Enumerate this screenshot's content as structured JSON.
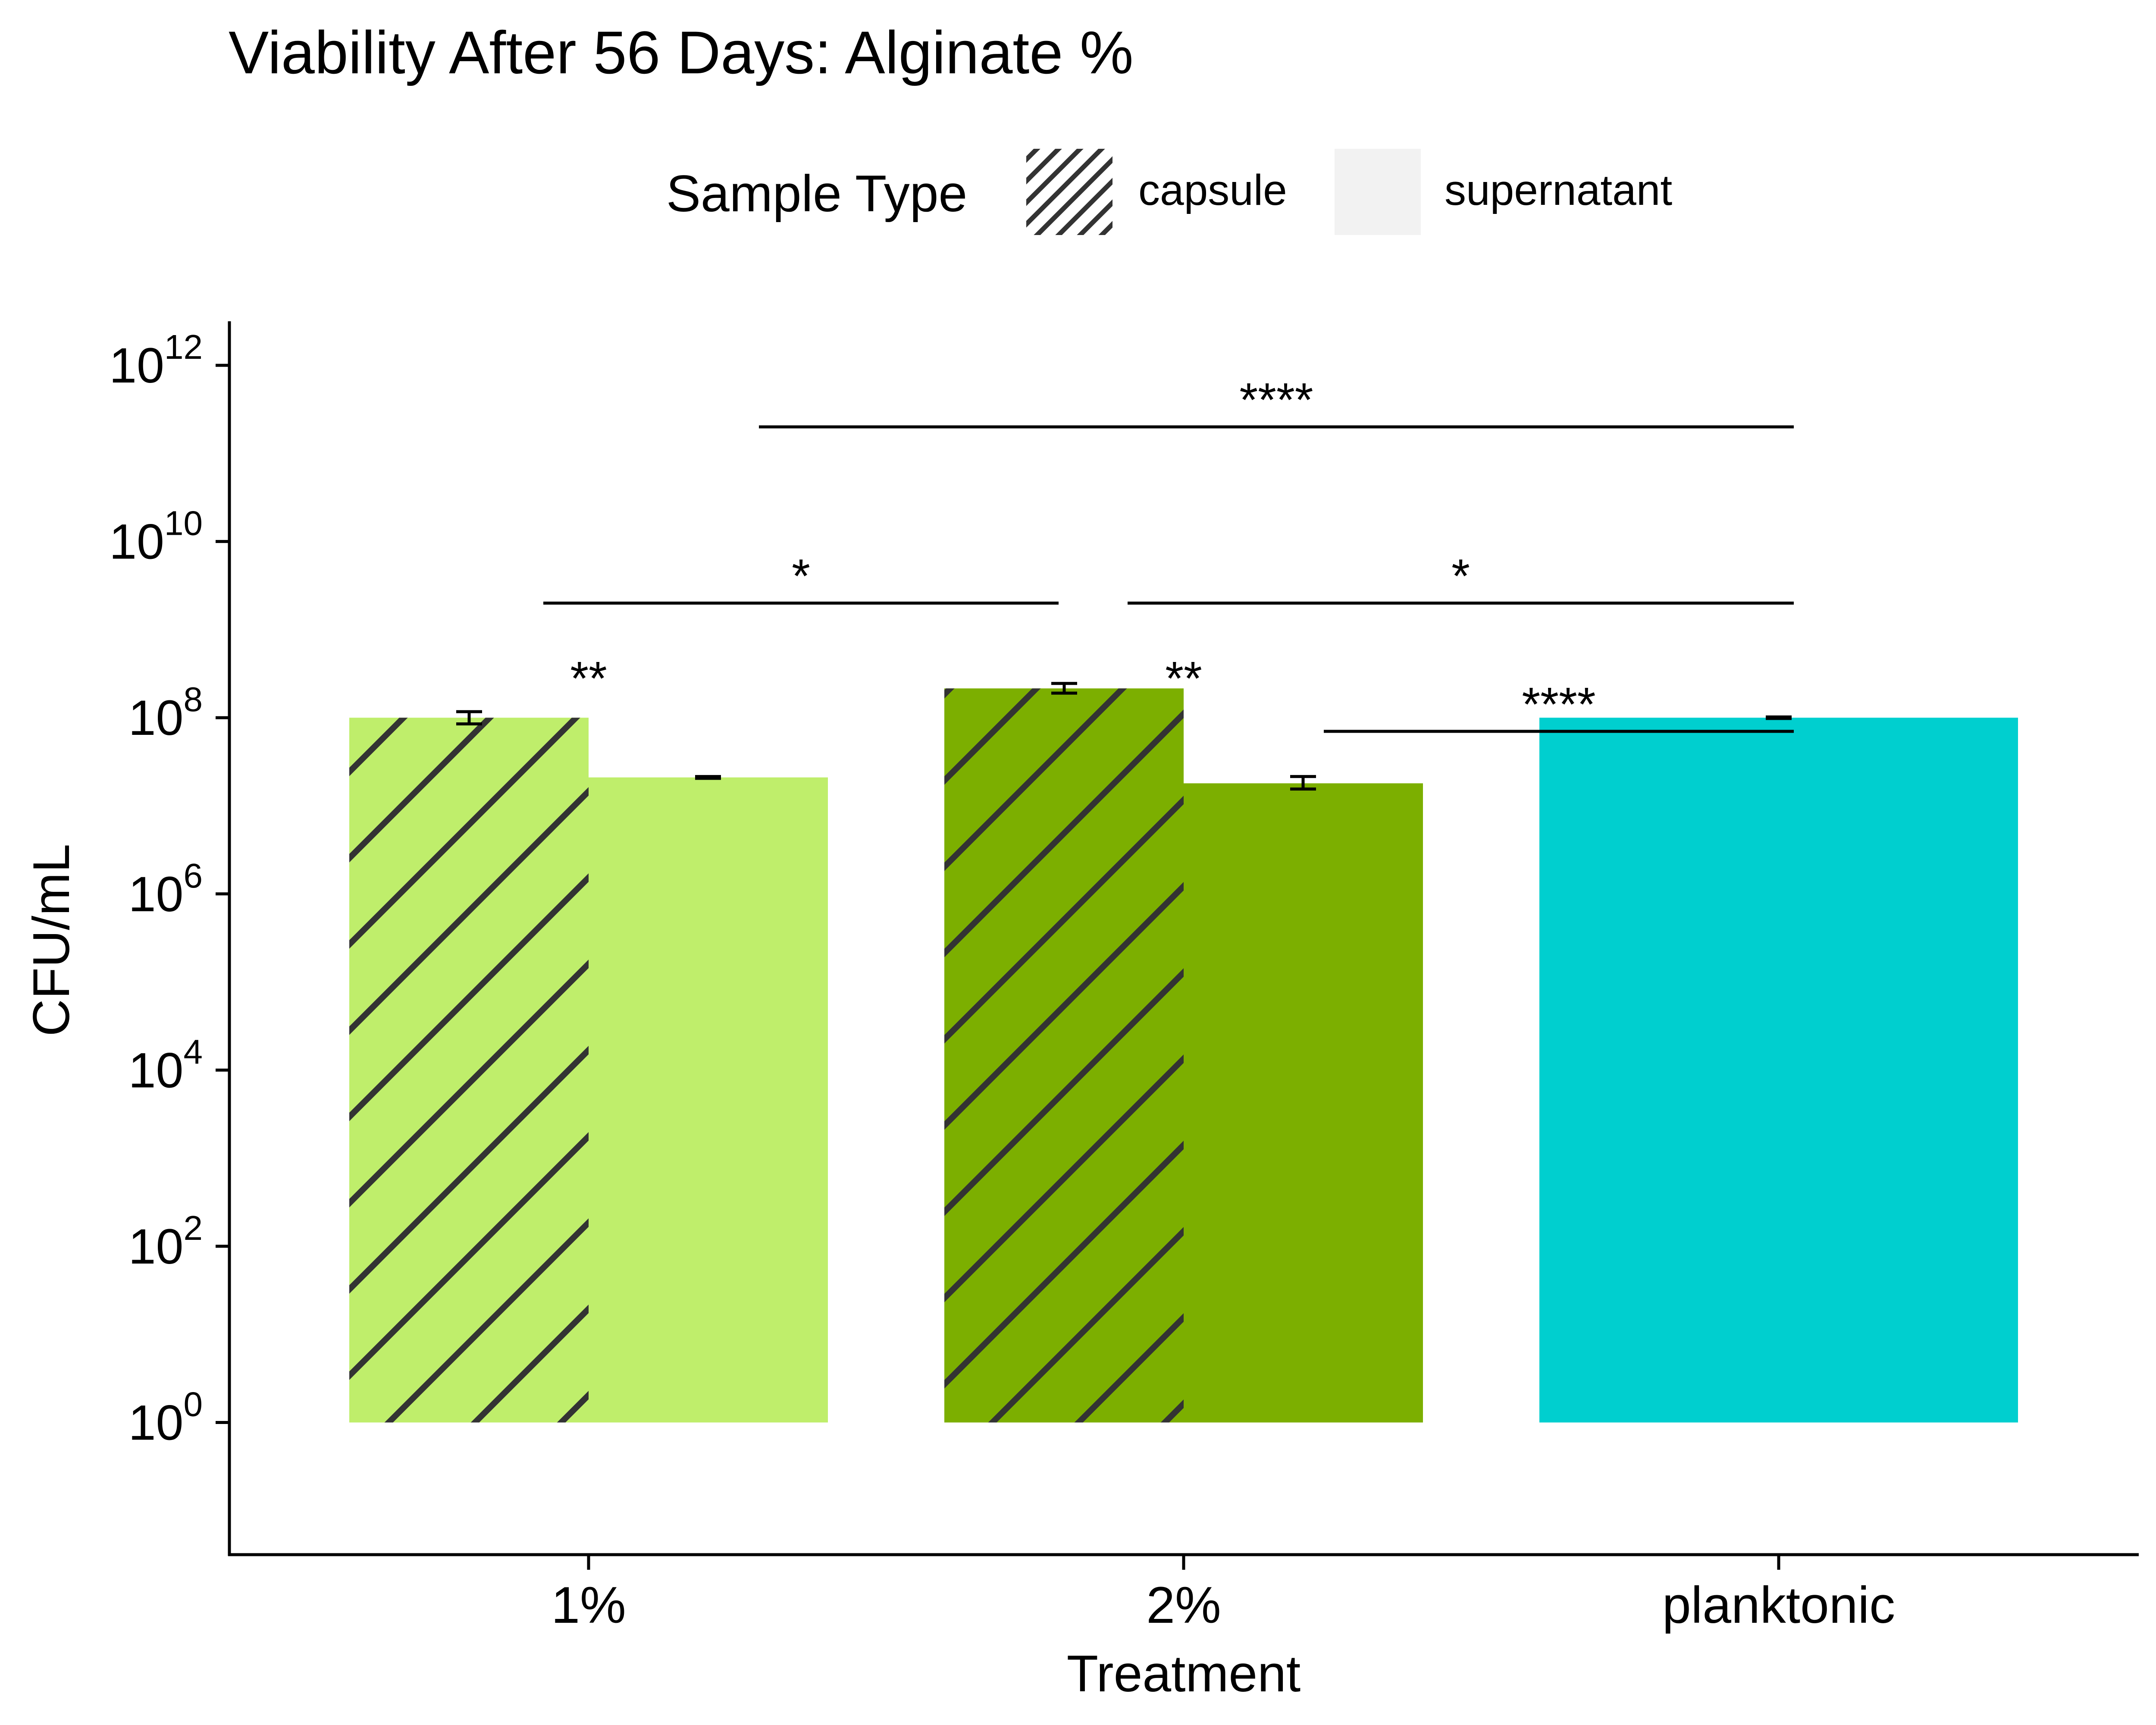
{
  "chart_data": {
    "type": "bar",
    "title": "Viability After 56 Days: Alginate %",
    "xlabel": "Treatment",
    "ylabel": "CFU/mL",
    "y_scale": "log10",
    "ylim": [
      0.0316,
      3160000000000.0
    ],
    "y_ticks": [
      {
        "value": 1,
        "base": "10",
        "exp": "0"
      },
      {
        "value": 100,
        "base": "10",
        "exp": "2"
      },
      {
        "value": 10000,
        "base": "10",
        "exp": "4"
      },
      {
        "value": 1000000,
        "base": "10",
        "exp": "6"
      },
      {
        "value": 100000000,
        "base": "10",
        "exp": "8"
      },
      {
        "value": 10000000000,
        "base": "10",
        "exp": "10"
      },
      {
        "value": 1000000000000,
        "base": "10",
        "exp": "12"
      }
    ],
    "categories": [
      "1%",
      "2%",
      "planktonic"
    ],
    "legend": {
      "title": "Sample Type",
      "position": "top",
      "entries": [
        {
          "name": "capsule",
          "pattern": "stripe"
        },
        {
          "name": "supernatant",
          "pattern": "none"
        }
      ]
    },
    "bars": [
      {
        "category": "1%",
        "sample_type": "capsule",
        "value": 100000000,
        "err_low": 85000000,
        "err_high": 117000000,
        "color": "#bfee6b",
        "pattern": "stripe"
      },
      {
        "category": "1%",
        "sample_type": "supernatant",
        "value": 21000000,
        "err_low": 20500000,
        "err_high": 21500000,
        "color": "#bfee6b",
        "pattern": "none"
      },
      {
        "category": "2%",
        "sample_type": "capsule",
        "value": 215000000,
        "err_low": 190000000,
        "err_high": 245000000,
        "color": "#7caf00",
        "pattern": "stripe"
      },
      {
        "category": "2%",
        "sample_type": "supernatant",
        "value": 18000000,
        "err_low": 15500000,
        "err_high": 21500000,
        "color": "#7caf00",
        "pattern": "none"
      },
      {
        "category": "planktonic",
        "sample_type": "supernatant",
        "value": 100000000,
        "err_low": 98000000,
        "err_high": 102000000,
        "color": "#00cfcf",
        "pattern": "none"
      }
    ],
    "significance": [
      {
        "label": "**",
        "type": "text",
        "category": "1%",
        "y": 400000000
      },
      {
        "label": "**",
        "type": "text",
        "category": "2%",
        "y": 400000000
      },
      {
        "label": "****",
        "type": "bracket",
        "x_from": "1%",
        "x_to": "planktonic",
        "y": 200000000000
      },
      {
        "label": "*",
        "type": "bracket",
        "x_from": "1%",
        "x_to": "2%",
        "y": 2000000000
      },
      {
        "label": "*",
        "type": "bracket",
        "x_from": "2%",
        "x_to": "planktonic",
        "y": 2000000000
      },
      {
        "label": "****",
        "type": "bracket",
        "x_from": "2%",
        "x_to": "planktonic",
        "y": 70000000
      }
    ],
    "grid": false
  }
}
